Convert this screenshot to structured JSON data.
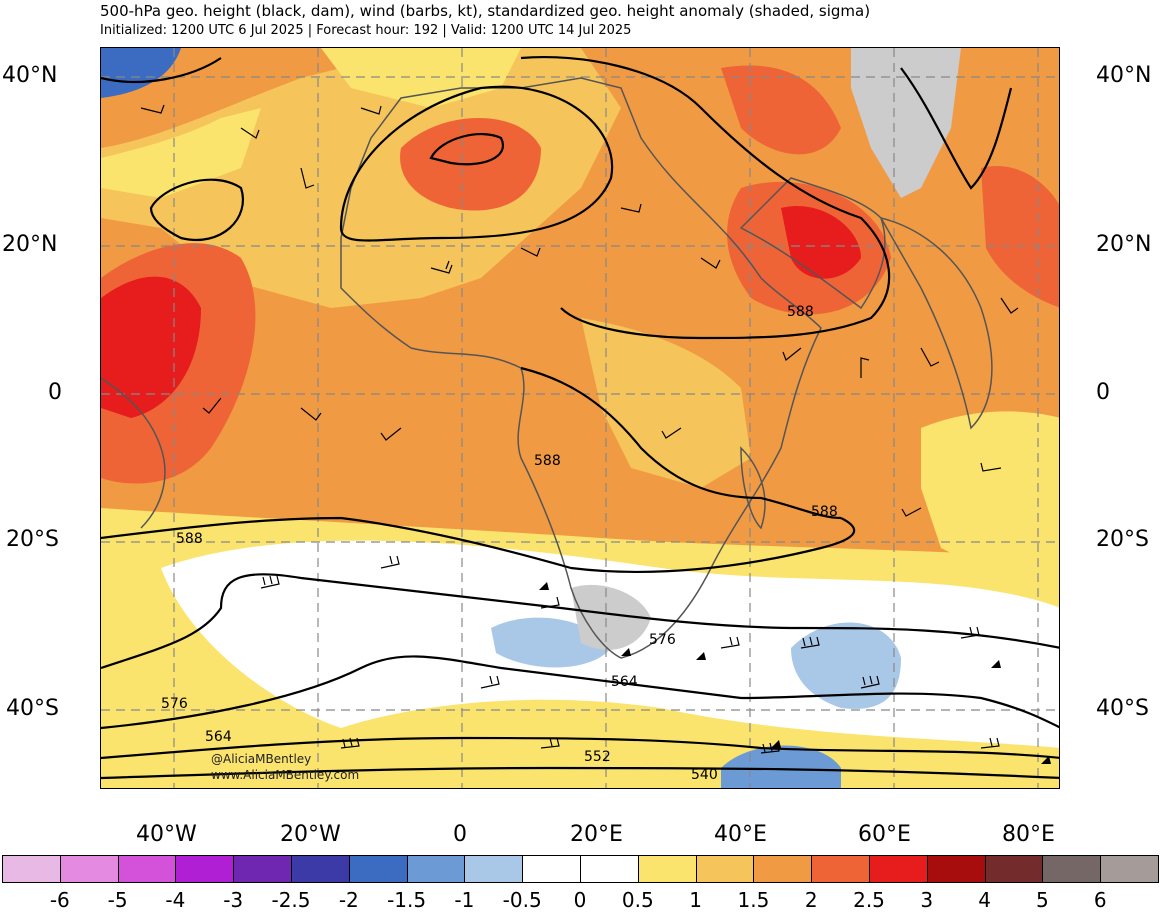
{
  "header": {
    "title": "500-hPa geo. height (black, dam), wind (barbs, kt), standardized geo. height anomaly (shaded, sigma)",
    "subtitle": "Initialized: 1200 UTC 6 Jul 2025 | Forecast hour: 192 | Valid: 1200 UTC 14 Jul 2025"
  },
  "axes": {
    "lat_labels": [
      "40°N",
      "20°N",
      "0",
      "20°S",
      "40°S"
    ],
    "lon_labels": [
      "40°W",
      "20°W",
      "0",
      "20°E",
      "40°E",
      "60°E",
      "80°E"
    ]
  },
  "contour_labels": [
    "588",
    "588",
    "588",
    "588",
    "576",
    "576",
    "564",
    "564",
    "552",
    "540"
  ],
  "watermark": {
    "handle": "@AliciaMBentley",
    "site": "www.AliciaMBentley.com"
  },
  "colorbar": {
    "colors": [
      "#e9b9e6",
      "#e48ae0",
      "#d452d9",
      "#b01fd3",
      "#6f27b2",
      "#3c3aa7",
      "#3b6cc2",
      "#6b9ad4",
      "#a9c8e8",
      "#ffffff",
      "#ffffff",
      "#fbe46d",
      "#f5c45a",
      "#f19a44",
      "#ee6436",
      "#e71c1c",
      "#a70d0d",
      "#742b2b",
      "#746765",
      "#a59b99"
    ],
    "labels": [
      "-6",
      "-5",
      "-4",
      "-3",
      "-2.5",
      "-2",
      "-1.5",
      "-1",
      "-0.5",
      "0",
      "0.5",
      "1",
      "1.5",
      "2",
      "2.5",
      "3",
      "4",
      "5",
      "6"
    ]
  }
}
